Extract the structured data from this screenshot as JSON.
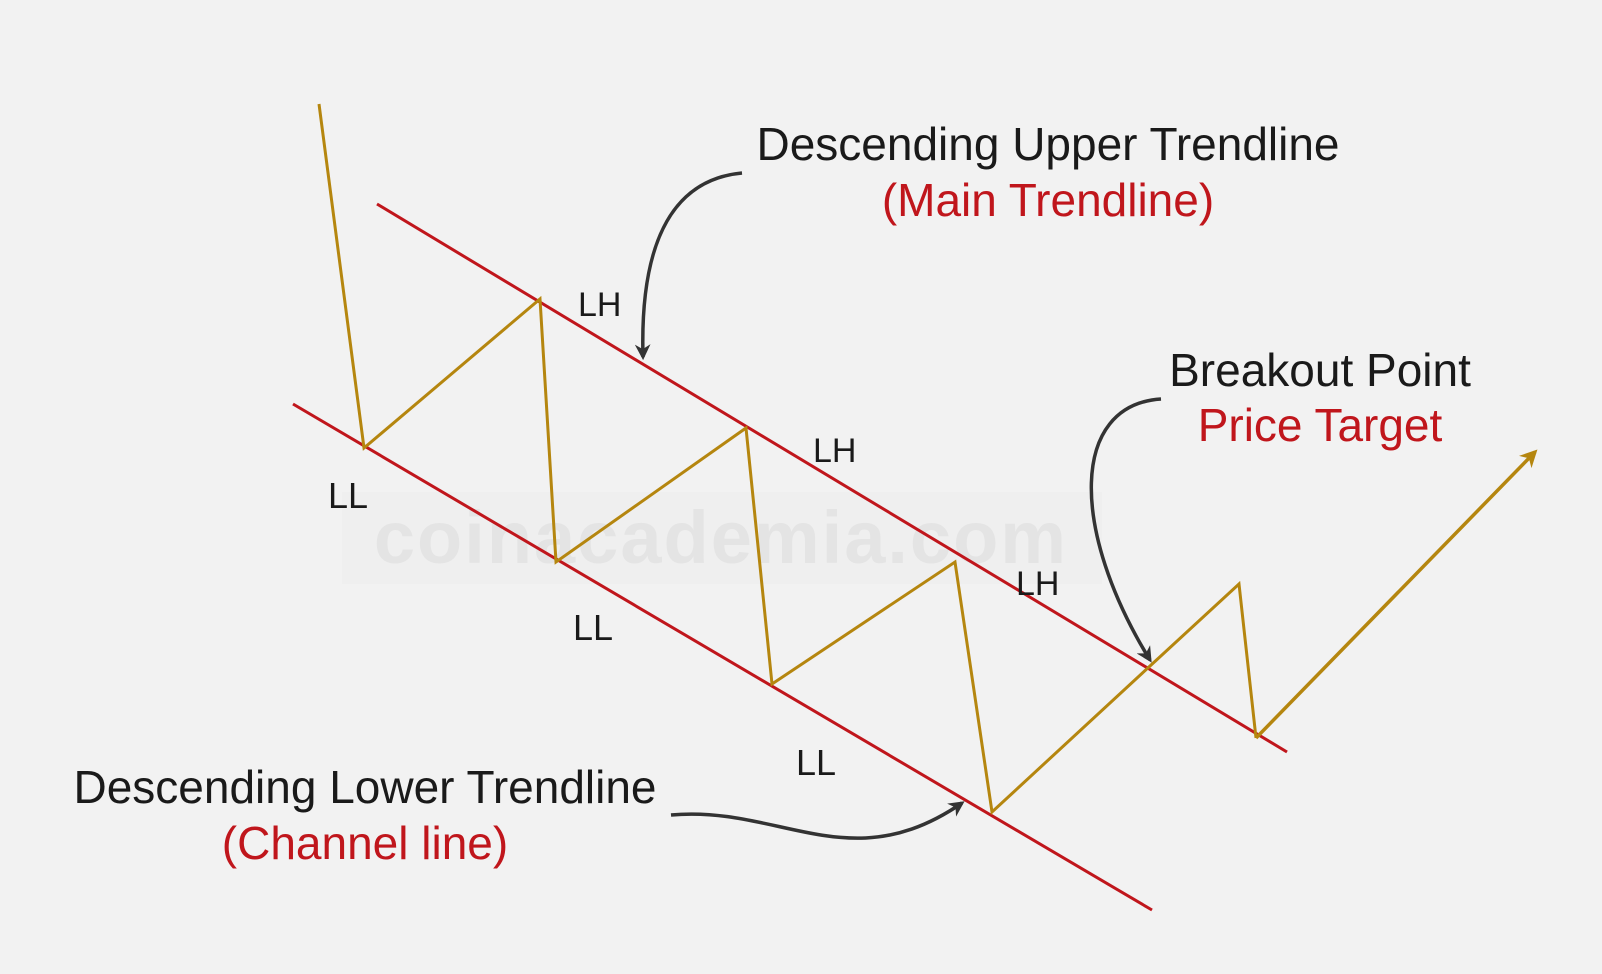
{
  "diagram": {
    "annotations": {
      "upper": {
        "title": "Descending Upper Trendline",
        "subtitle": "(Main Trendline)"
      },
      "breakout": {
        "title": "Breakout Point",
        "subtitle": "Price Target"
      },
      "lower": {
        "title": "Descending Lower Trendline",
        "subtitle": "(Channel line)"
      }
    },
    "swing_labels": {
      "lh_1": "LH",
      "lh_2": "LH",
      "lh_3": "LH",
      "ll_1": "LL",
      "ll_2": "LL",
      "ll_3": "LL"
    },
    "watermark": "coinacademia.com",
    "colors": {
      "background": "#f2f2f2",
      "trendline": "#c0161c",
      "price": "#b5860f",
      "text": "#1a1a1a",
      "subtitle": "#c0161c",
      "callout_arrow": "#333333",
      "watermark": "#e6e6e6"
    }
  }
}
